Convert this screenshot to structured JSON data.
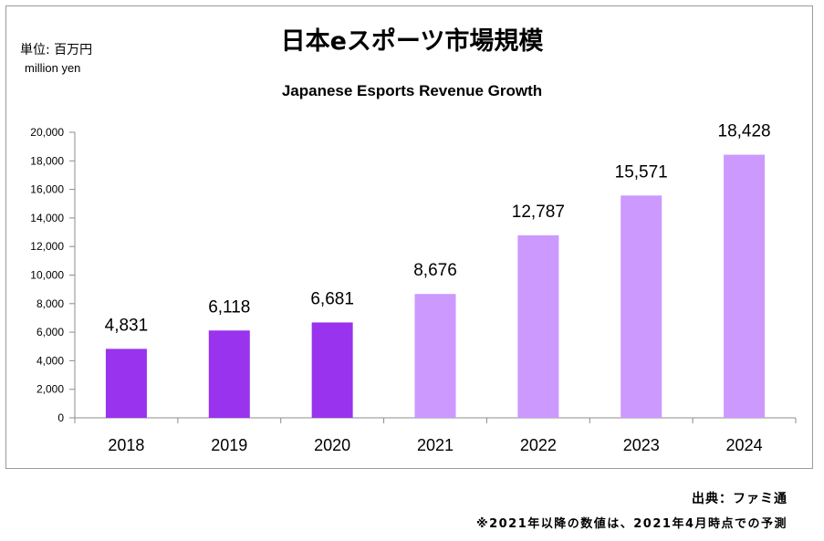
{
  "unit": {
    "label": "単位: 百万円",
    "sub": "million yen"
  },
  "chart_data": {
    "type": "bar",
    "title": "日本eスポーツ市場規模",
    "subtitle": "Japanese Esports Revenue Growth",
    "categories": [
      "2018",
      "2019",
      "2020",
      "2021",
      "2022",
      "2023",
      "2024"
    ],
    "values": [
      4831,
      6118,
      6681,
      8676,
      12787,
      15571,
      18428
    ],
    "data_labels": [
      "4,831",
      "6,118",
      "6,681",
      "8,676",
      "12,787",
      "15,571",
      "18,428"
    ],
    "projected": [
      false,
      false,
      false,
      true,
      true,
      true,
      true
    ],
    "ylim": [
      0,
      20000
    ],
    "yticks": [
      0,
      2000,
      4000,
      6000,
      8000,
      10000,
      12000,
      14000,
      16000,
      18000,
      20000
    ],
    "ytick_labels": [
      "0",
      "2,000",
      "4,000",
      "6,000",
      "8,000",
      "10,000",
      "12,000",
      "14,000",
      "16,000",
      "18,000",
      "20,000"
    ],
    "grid": false,
    "legend": "none",
    "colors": {
      "actual": "#9933ee",
      "projected": "#cc99ff"
    }
  },
  "footer": {
    "source": "出典：ファミ通",
    "note": "※2021年以降の数値は、2021年4月時点での予測"
  }
}
